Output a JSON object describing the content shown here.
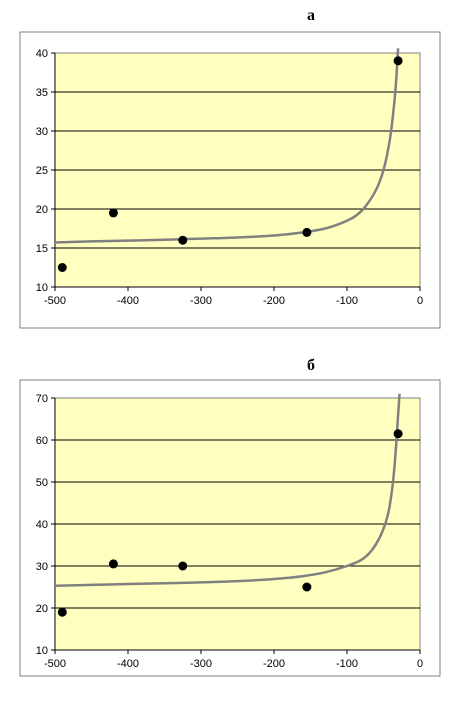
{
  "colors": {
    "plot_bg": "#ffffc0",
    "grid": "#000000",
    "curve": "#808080",
    "marker": "#000000",
    "frame": "#808080"
  },
  "chart_data": [
    {
      "type": "scatter",
      "title": "а",
      "xlim": [
        -500,
        0
      ],
      "ylim": [
        10,
        40
      ],
      "xticks": [
        -500,
        -400,
        -300,
        -200,
        -100,
        0
      ],
      "yticks": [
        10,
        15,
        20,
        25,
        30,
        35,
        40
      ],
      "grid": "horizontal",
      "points": [
        {
          "x": -490,
          "y": 12.5
        },
        {
          "x": -420,
          "y": 19.5
        },
        {
          "x": -325,
          "y": 16.0
        },
        {
          "x": -155,
          "y": 17.0
        },
        {
          "x": -30,
          "y": 39.0
        }
      ],
      "fit_curve": [
        {
          "x": -500,
          "y": 15.7
        },
        {
          "x": -450,
          "y": 15.85
        },
        {
          "x": -400,
          "y": 15.95
        },
        {
          "x": -350,
          "y": 16.05
        },
        {
          "x": -300,
          "y": 16.2
        },
        {
          "x": -250,
          "y": 16.35
        },
        {
          "x": -200,
          "y": 16.6
        },
        {
          "x": -160,
          "y": 17.0
        },
        {
          "x": -130,
          "y": 17.5
        },
        {
          "x": -110,
          "y": 18.1
        },
        {
          "x": -90,
          "y": 19.0
        },
        {
          "x": -75,
          "y": 20.3
        },
        {
          "x": -60,
          "y": 22.5
        },
        {
          "x": -50,
          "y": 25.0
        },
        {
          "x": -42,
          "y": 28.5
        },
        {
          "x": -37,
          "y": 32.0
        },
        {
          "x": -33,
          "y": 36.0
        },
        {
          "x": -30,
          "y": 40.6
        }
      ]
    },
    {
      "type": "scatter",
      "title": "б",
      "xlim": [
        -500,
        0
      ],
      "ylim": [
        10,
        70
      ],
      "xticks": [
        -500,
        -400,
        -300,
        -200,
        -100,
        0
      ],
      "yticks": [
        10,
        20,
        30,
        40,
        50,
        60,
        70
      ],
      "grid": "horizontal",
      "points": [
        {
          "x": -490,
          "y": 19.0
        },
        {
          "x": -420,
          "y": 30.5
        },
        {
          "x": -325,
          "y": 30.0
        },
        {
          "x": -155,
          "y": 25.0
        },
        {
          "x": -30,
          "y": 61.5
        }
      ],
      "fit_curve": [
        {
          "x": -500,
          "y": 25.3
        },
        {
          "x": -450,
          "y": 25.5
        },
        {
          "x": -400,
          "y": 25.7
        },
        {
          "x": -350,
          "y": 25.9
        },
        {
          "x": -300,
          "y": 26.1
        },
        {
          "x": -250,
          "y": 26.4
        },
        {
          "x": -200,
          "y": 26.9
        },
        {
          "x": -160,
          "y": 27.6
        },
        {
          "x": -130,
          "y": 28.5
        },
        {
          "x": -100,
          "y": 30.0
        },
        {
          "x": -80,
          "y": 31.5
        },
        {
          "x": -65,
          "y": 34.0
        },
        {
          "x": -52,
          "y": 38.0
        },
        {
          "x": -43,
          "y": 43.0
        },
        {
          "x": -37,
          "y": 50.0
        },
        {
          "x": -33,
          "y": 58.0
        },
        {
          "x": -30,
          "y": 66.0
        },
        {
          "x": -28,
          "y": 71.0
        }
      ]
    }
  ]
}
